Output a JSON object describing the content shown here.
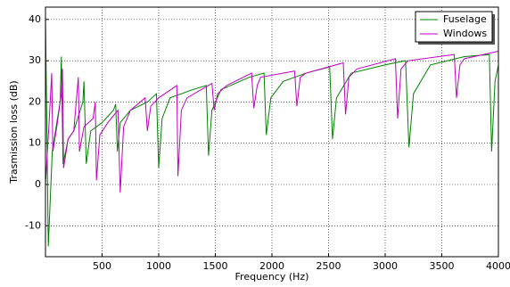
{
  "chart_data": {
    "type": "line",
    "x_label": "Frequency (Hz)",
    "y_label": "Trasmission loss (dB)",
    "xlim": [
      0,
      4000
    ],
    "ylim": [
      -17.5,
      43
    ],
    "xticks": [
      500,
      1000,
      1500,
      2000,
      2500,
      3000,
      3500,
      4000
    ],
    "yticks": [
      -10,
      0,
      10,
      20,
      30,
      40
    ],
    "grid": true,
    "legend": "upper right",
    "series": [
      {
        "name": "Fuselage",
        "color": "#008000",
        "x": [
          0,
          25,
          60,
          100,
          130,
          140,
          155,
          200,
          250,
          330,
          340,
          360,
          400,
          500,
          600,
          620,
          635,
          660,
          750,
          900,
          980,
          1000,
          1030,
          1100,
          1300,
          1420,
          1440,
          1470,
          1550,
          1800,
          1930,
          1950,
          1990,
          2100,
          2300,
          2510,
          2535,
          2570,
          2700,
          3000,
          3180,
          3210,
          3250,
          3400,
          3700,
          3920,
          3940,
          3970,
          4000
        ],
        "values": [
          41,
          -15,
          8,
          15,
          20,
          31,
          5,
          11,
          13,
          20,
          25,
          5,
          13,
          15,
          18,
          19.5,
          8,
          15,
          18,
          20,
          22,
          4,
          16,
          21,
          23,
          24,
          7,
          18,
          23,
          26,
          27,
          12,
          21,
          25,
          27,
          28.5,
          11,
          21,
          27,
          29,
          30,
          9,
          22,
          29,
          31,
          31.5,
          8,
          25,
          29
        ]
      },
      {
        "name": "Windows",
        "color": "#bf00bf",
        "x": [
          0,
          30,
          55,
          65,
          100,
          140,
          150,
          160,
          200,
          250,
          290,
          300,
          340,
          420,
          440,
          450,
          480,
          550,
          640,
          660,
          690,
          750,
          880,
          900,
          930,
          1000,
          1160,
          1170,
          1200,
          1250,
          1470,
          1490,
          1520,
          1600,
          1820,
          1840,
          1870,
          1900,
          2200,
          2220,
          2250,
          2300,
          2630,
          2650,
          2680,
          2750,
          3090,
          3110,
          3140,
          3200,
          3610,
          3630,
          3660,
          3700,
          4000
        ],
        "values": [
          0,
          14,
          27,
          8,
          14,
          22,
          28,
          4,
          11,
          13,
          26,
          8,
          14,
          16,
          20,
          1,
          12,
          15,
          18,
          -2,
          14,
          18,
          21,
          13,
          19,
          21,
          24,
          2,
          18,
          21,
          24.5,
          18,
          22,
          24,
          27,
          18.5,
          24,
          26,
          27.5,
          19,
          26,
          27,
          29.5,
          17,
          26,
          28,
          30.5,
          16,
          28,
          30,
          31.5,
          21,
          29,
          30.5,
          32.3
        ]
      }
    ]
  }
}
